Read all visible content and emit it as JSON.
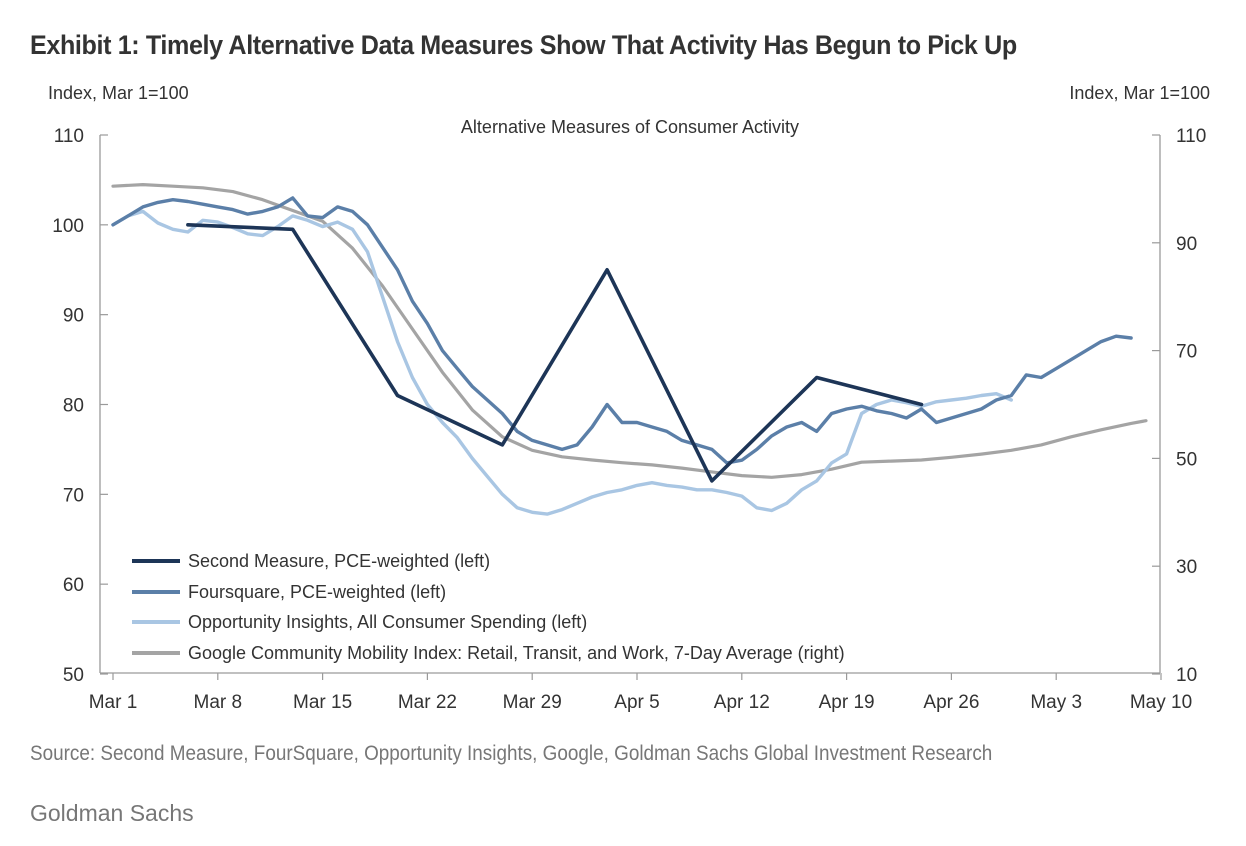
{
  "title": "Exhibit 1: Timely Alternative Data Measures Show That Activity Has Begun to Pick Up",
  "source": "Source: Second Measure, FourSquare, Opportunity Insights, Google, Goldman Sachs Global Investment Research",
  "brand": "Goldman Sachs",
  "chart_data": {
    "type": "line",
    "subtitle": "Alternative Measures of Consumer Activity",
    "left_axis": {
      "label": "Index, Mar 1=100",
      "ylim": [
        50,
        110
      ],
      "ticks": [
        50,
        60,
        70,
        80,
        90,
        100,
        110
      ]
    },
    "right_axis": {
      "label": "Index, Mar 1=100",
      "ylim": [
        10,
        110
      ],
      "ticks": [
        10,
        30,
        50,
        70,
        90,
        110
      ]
    },
    "x_axis": {
      "ticks": [
        "Mar 1",
        "Mar 8",
        "Mar 15",
        "Mar 22",
        "Mar 29",
        "Apr 5",
        "Apr 12",
        "Apr 19",
        "Apr 26",
        "May 3",
        "May 10"
      ],
      "range_days": [
        0,
        70
      ]
    },
    "grid": false,
    "legend": "bottom-left",
    "colors": {
      "second_measure": "#1d3557",
      "foursquare": "#5b7fa8",
      "opportunity": "#a9c6e3",
      "google": "#a4a4a4"
    },
    "series": [
      {
        "name": "Second Measure, PCE-weighted (left)",
        "axis": "left",
        "color_key": "second_measure",
        "points": [
          [
            5,
            100
          ],
          [
            12,
            99.5
          ],
          [
            19,
            81
          ],
          [
            26,
            75.5
          ],
          [
            33,
            95
          ],
          [
            40,
            71.5
          ],
          [
            47,
            83
          ],
          [
            54,
            80
          ]
        ]
      },
      {
        "name": "Foursquare, PCE-weighted (left)",
        "axis": "left",
        "color_key": "foursquare",
        "points": [
          [
            0,
            100
          ],
          [
            1,
            101
          ],
          [
            2,
            102
          ],
          [
            3,
            102.5
          ],
          [
            4,
            102.8
          ],
          [
            5,
            102.6
          ],
          [
            6,
            102.3
          ],
          [
            7,
            102
          ],
          [
            8,
            101.7
          ],
          [
            9,
            101.2
          ],
          [
            10,
            101.5
          ],
          [
            11,
            102
          ],
          [
            12,
            103
          ],
          [
            13,
            101
          ],
          [
            14,
            100.8
          ],
          [
            15,
            102
          ],
          [
            16,
            101.5
          ],
          [
            17,
            100
          ],
          [
            18,
            97.5
          ],
          [
            19,
            95
          ],
          [
            20,
            91.5
          ],
          [
            21,
            89
          ],
          [
            22,
            86
          ],
          [
            23,
            84
          ],
          [
            24,
            82
          ],
          [
            25,
            80.5
          ],
          [
            26,
            79
          ],
          [
            27,
            77
          ],
          [
            28,
            76
          ],
          [
            29,
            75.5
          ],
          [
            30,
            75
          ],
          [
            31,
            75.5
          ],
          [
            32,
            77.5
          ],
          [
            33,
            80
          ],
          [
            34,
            78
          ],
          [
            35,
            78
          ],
          [
            36,
            77.5
          ],
          [
            37,
            77
          ],
          [
            38,
            76
          ],
          [
            39,
            75.5
          ],
          [
            40,
            75
          ],
          [
            41,
            73.5
          ],
          [
            42,
            73.8
          ],
          [
            43,
            75
          ],
          [
            44,
            76.5
          ],
          [
            45,
            77.5
          ],
          [
            46,
            78
          ],
          [
            47,
            77
          ],
          [
            48,
            79
          ],
          [
            49,
            79.5
          ],
          [
            50,
            79.8
          ],
          [
            51,
            79.3
          ],
          [
            52,
            79
          ],
          [
            53,
            78.5
          ],
          [
            54,
            79.5
          ],
          [
            55,
            78
          ],
          [
            56,
            78.5
          ],
          [
            57,
            79
          ],
          [
            58,
            79.5
          ],
          [
            59,
            80.5
          ],
          [
            60,
            81
          ],
          [
            61,
            83.3
          ],
          [
            62,
            83
          ],
          [
            63,
            84
          ],
          [
            64,
            85
          ],
          [
            65,
            86
          ],
          [
            66,
            87
          ],
          [
            67,
            87.6
          ],
          [
            68,
            87.4
          ]
        ]
      },
      {
        "name": "Opportunity Insights, All Consumer Spending (left)",
        "axis": "left",
        "color_key": "opportunity",
        "points": [
          [
            0,
            100
          ],
          [
            1,
            101
          ],
          [
            2,
            101.5
          ],
          [
            3,
            100.2
          ],
          [
            4,
            99.5
          ],
          [
            5,
            99.2
          ],
          [
            6,
            100.5
          ],
          [
            7,
            100.3
          ],
          [
            8,
            99.7
          ],
          [
            9,
            99
          ],
          [
            10,
            98.8
          ],
          [
            11,
            99.8
          ],
          [
            12,
            101
          ],
          [
            13,
            100.5
          ],
          [
            14,
            99.8
          ],
          [
            15,
            100.3
          ],
          [
            16,
            99.5
          ],
          [
            17,
            97
          ],
          [
            18,
            92
          ],
          [
            19,
            87
          ],
          [
            20,
            83
          ],
          [
            21,
            80
          ],
          [
            22,
            78
          ],
          [
            23,
            76.3
          ],
          [
            24,
            74
          ],
          [
            25,
            72
          ],
          [
            26,
            70
          ],
          [
            27,
            68.5
          ],
          [
            28,
            68
          ],
          [
            29,
            67.8
          ],
          [
            30,
            68.3
          ],
          [
            31,
            69
          ],
          [
            32,
            69.7
          ],
          [
            33,
            70.2
          ],
          [
            34,
            70.5
          ],
          [
            35,
            71
          ],
          [
            36,
            71.3
          ],
          [
            37,
            71
          ],
          [
            38,
            70.8
          ],
          [
            39,
            70.5
          ],
          [
            40,
            70.5
          ],
          [
            41,
            70.2
          ],
          [
            42,
            69.8
          ],
          [
            43,
            68.5
          ],
          [
            44,
            68.2
          ],
          [
            45,
            69
          ],
          [
            46,
            70.5
          ],
          [
            47,
            71.5
          ],
          [
            48,
            73.5
          ],
          [
            49,
            74.5
          ],
          [
            50,
            79
          ],
          [
            51,
            80
          ],
          [
            52,
            80.5
          ],
          [
            53,
            80.2
          ],
          [
            54,
            79.8
          ],
          [
            55,
            80.3
          ],
          [
            56,
            80.5
          ],
          [
            57,
            80.7
          ],
          [
            58,
            81
          ],
          [
            59,
            81.2
          ],
          [
            60,
            80.5
          ]
        ]
      },
      {
        "name": "Google Community Mobility Index: Retail, Transit, and Work, 7-Day Average (right)",
        "axis": "right",
        "color_key": "google",
        "points": [
          [
            0,
            100.5
          ],
          [
            2,
            100.8
          ],
          [
            4,
            100.5
          ],
          [
            6,
            100.2
          ],
          [
            8,
            99.5
          ],
          [
            10,
            98
          ],
          [
            12,
            96
          ],
          [
            14,
            94
          ],
          [
            16,
            89
          ],
          [
            18,
            82
          ],
          [
            20,
            74
          ],
          [
            22,
            66
          ],
          [
            24,
            59
          ],
          [
            26,
            54
          ],
          [
            28,
            51.5
          ],
          [
            30,
            50.3
          ],
          [
            32,
            49.7
          ],
          [
            34,
            49.2
          ],
          [
            36,
            48.8
          ],
          [
            38,
            48.2
          ],
          [
            40,
            47.5
          ],
          [
            42,
            46.8
          ],
          [
            44,
            46.5
          ],
          [
            46,
            47
          ],
          [
            48,
            48
          ],
          [
            50,
            49.3
          ],
          [
            52,
            49.5
          ],
          [
            54,
            49.7
          ],
          [
            56,
            50.2
          ],
          [
            58,
            50.8
          ],
          [
            60,
            51.5
          ],
          [
            62,
            52.5
          ],
          [
            64,
            54
          ],
          [
            66,
            55.3
          ],
          [
            68,
            56.5
          ],
          [
            69,
            57
          ]
        ]
      }
    ]
  }
}
